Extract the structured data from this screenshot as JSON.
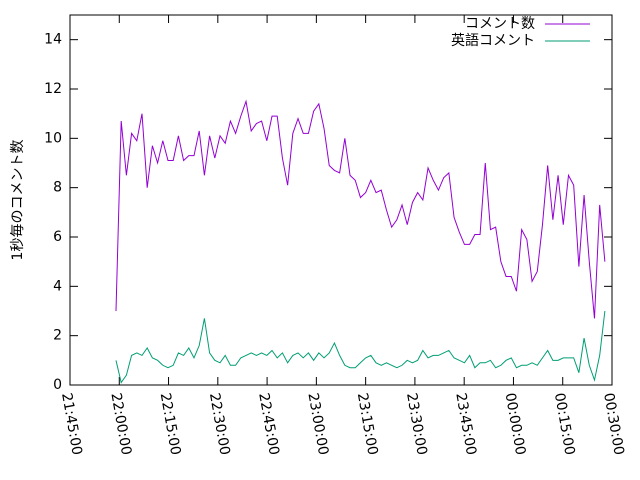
{
  "chart_data": {
    "type": "line",
    "y_label": "1秒毎のコメント数",
    "x": [
      79140,
      79235,
      79330,
      79425,
      79520,
      79615,
      79710,
      79805,
      79900,
      79995,
      80090,
      80185,
      80280,
      80375,
      80470,
      80565,
      80660,
      80755,
      80850,
      80945,
      81040,
      81135,
      81230,
      81325,
      81420,
      81515,
      81610,
      81705,
      81800,
      81895,
      81990,
      82085,
      82180,
      82275,
      82370,
      82465,
      82560,
      82655,
      82750,
      82845,
      82940,
      83035,
      83130,
      83225,
      83320,
      83415,
      83510,
      83605,
      83700,
      83795,
      83890,
      83985,
      84080,
      84175,
      84270,
      84365,
      84460,
      84555,
      84650,
      84745,
      84840,
      84935,
      85030,
      85125,
      85220,
      85315,
      85410,
      85505,
      85600,
      85695,
      85790,
      85885,
      85980,
      86075,
      86170,
      86265,
      86360,
      86455,
      86550,
      86645,
      86740,
      86835,
      86930,
      87025,
      87120,
      87215,
      87310,
      87405,
      87500,
      87595,
      87690,
      87785,
      87880,
      87975,
      88070
    ],
    "series": [
      {
        "name": "コメント数",
        "color": "#9400d3",
        "values": [
          3.0,
          10.7,
          8.5,
          10.2,
          9.9,
          11.0,
          8.0,
          9.7,
          9.0,
          9.9,
          9.1,
          9.1,
          10.1,
          9.1,
          9.3,
          9.3,
          10.3,
          8.5,
          10.1,
          9.2,
          10.1,
          9.8,
          10.7,
          10.2,
          10.9,
          11.5,
          10.3,
          10.6,
          10.7,
          9.9,
          10.9,
          10.9,
          9.2,
          8.1,
          10.2,
          10.8,
          10.2,
          10.2,
          11.1,
          11.4,
          10.4,
          8.9,
          8.7,
          8.6,
          10.0,
          8.5,
          8.3,
          7.6,
          7.8,
          8.3,
          7.8,
          7.9,
          7.1,
          6.4,
          6.7,
          7.3,
          6.5,
          7.4,
          7.8,
          7.5,
          8.8,
          8.3,
          7.9,
          8.4,
          8.6,
          6.8,
          6.2,
          5.7,
          5.7,
          6.1,
          6.1,
          9.0,
          6.3,
          6.4,
          5.0,
          4.4,
          4.4,
          3.8,
          6.3,
          5.9,
          4.2,
          4.6,
          6.5,
          8.9,
          6.7,
          8.5,
          6.5,
          8.5,
          8.1,
          4.8,
          7.7,
          5.0,
          2.7,
          7.3,
          5.0
        ]
      },
      {
        "name": "英語コメント",
        "color": "#009e73",
        "values": [
          1.0,
          0.1,
          0.4,
          1.2,
          1.3,
          1.2,
          1.5,
          1.1,
          1.0,
          0.8,
          0.7,
          0.8,
          1.3,
          1.2,
          1.5,
          1.1,
          1.6,
          2.7,
          1.3,
          1.0,
          0.9,
          1.2,
          0.8,
          0.8,
          1.1,
          1.2,
          1.3,
          1.2,
          1.3,
          1.2,
          1.4,
          1.1,
          1.3,
          0.9,
          1.2,
          1.3,
          1.1,
          1.3,
          1.0,
          1.3,
          1.1,
          1.3,
          1.7,
          1.2,
          0.8,
          0.7,
          0.7,
          0.9,
          1.1,
          1.2,
          0.9,
          0.8,
          0.9,
          0.8,
          0.7,
          0.8,
          1.0,
          0.9,
          1.0,
          1.4,
          1.1,
          1.2,
          1.2,
          1.3,
          1.4,
          1.1,
          1.0,
          0.9,
          1.2,
          0.7,
          0.9,
          0.9,
          1.0,
          0.7,
          0.8,
          1.0,
          1.1,
          0.7,
          0.8,
          0.8,
          0.9,
          0.8,
          1.1,
          1.4,
          1.0,
          1.0,
          1.1,
          1.1,
          1.1,
          0.5,
          1.9,
          0.8,
          0.2,
          1.2,
          3.0
        ]
      }
    ],
    "xlim": [
      78300,
      88200
    ],
    "xticks": [
      {
        "value": 78300,
        "label": "21:45:00"
      },
      {
        "value": 79200,
        "label": "22:00:00"
      },
      {
        "value": 80100,
        "label": "22:15:00"
      },
      {
        "value": 81000,
        "label": "22:30:00"
      },
      {
        "value": 81900,
        "label": "22:45:00"
      },
      {
        "value": 82800,
        "label": "23:00:00"
      },
      {
        "value": 83700,
        "label": "23:15:00"
      },
      {
        "value": 84600,
        "label": "23:30:00"
      },
      {
        "value": 85500,
        "label": "23:45:00"
      },
      {
        "value": 86400,
        "label": "00:00:00"
      },
      {
        "value": 87300,
        "label": "00:15:00"
      },
      {
        "value": 88200,
        "label": "00:30:00"
      }
    ],
    "ylim": [
      0,
      15
    ],
    "yticks": [
      0,
      2,
      4,
      6,
      8,
      10,
      12,
      14
    ],
    "legend": "top-right"
  }
}
